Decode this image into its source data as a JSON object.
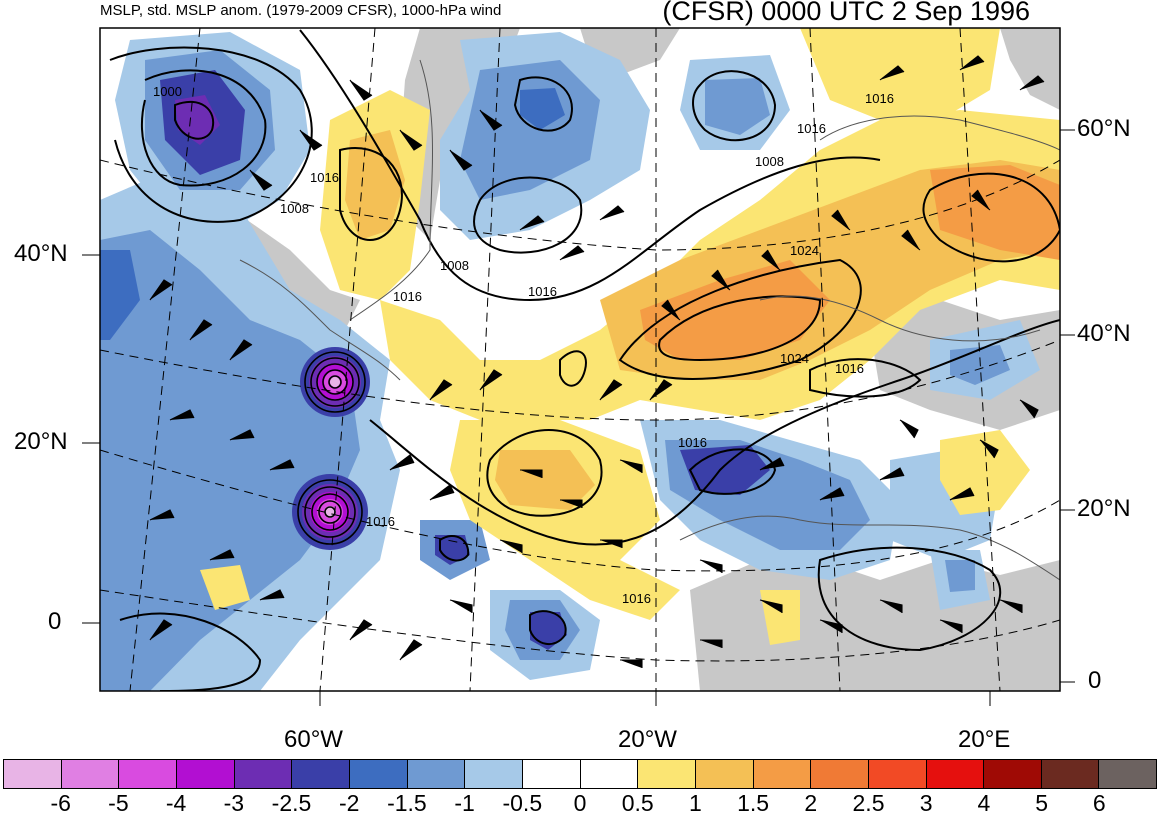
{
  "header": {
    "left": "MSLP, std. MSLP anom. (1979-2009 CFSR), 1000-hPa wind",
    "right": "(CFSR) 0000 UTC 2 Sep 1996"
  },
  "axes": {
    "left": [
      "40°N",
      "20°N",
      "0"
    ],
    "right": [
      "60°N",
      "40°N",
      "20°N",
      "0"
    ],
    "bottom": [
      "60°W",
      "20°W",
      "20°E"
    ]
  },
  "contour_labels": [
    "1000",
    "1016",
    "1008",
    "1016",
    "1008",
    "1016",
    "1008",
    "1016",
    "1016",
    "1024",
    "1024",
    "1016",
    "1016",
    "1016",
    "1016"
  ],
  "colorbar": {
    "labels": [
      "-6",
      "-5",
      "-4",
      "-3",
      "-2.5",
      "-2",
      "-1.5",
      "-1",
      "-0.5",
      "0",
      "0.5",
      "1",
      "1.5",
      "2",
      "2.5",
      "3",
      "4",
      "5",
      "6"
    ],
    "colors": [
      "#e8b4e6",
      "#e07fe3",
      "#d94be0",
      "#b20fd2",
      "#6d2db3",
      "#3a3fa8",
      "#3d6dc0",
      "#6f9ad2",
      "#a6c9e8",
      "#ffffff",
      "#ffffff",
      "#fbe573",
      "#f4c055",
      "#f49c45",
      "#f07a35",
      "#f24a25",
      "#e5100e",
      "#9f0a05",
      "#6b2a20",
      "#6c6260"
    ]
  }
}
